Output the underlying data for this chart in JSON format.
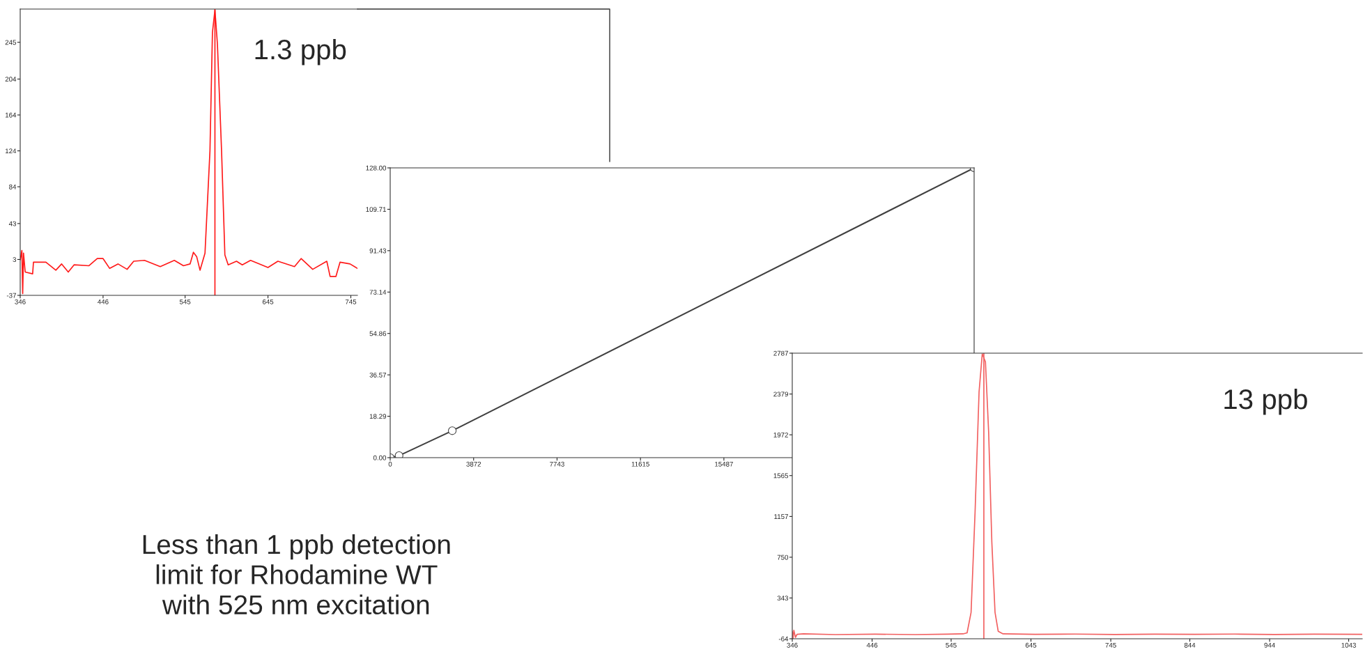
{
  "chart_data": [
    {
      "type": "line",
      "x": [
        346,
        348,
        349,
        350,
        352,
        361,
        362,
        377,
        389,
        396,
        404,
        411,
        429,
        439,
        446,
        454,
        464,
        475,
        483,
        496,
        515,
        532,
        543,
        551,
        555,
        559,
        563,
        569,
        575,
        578,
        581,
        584,
        589,
        593,
        597,
        607,
        614,
        624,
        645,
        657,
        677,
        685,
        699,
        716,
        720,
        727,
        732,
        744,
        753
      ],
      "series": [
        {
          "color": "#ff1a1a",
          "values": [
            2.5,
            13,
            -35,
            10,
            -11,
            -13,
            0,
            0,
            -9,
            -2,
            -11,
            -3,
            -4,
            4,
            4,
            -7,
            -2,
            -8,
            1,
            2,
            -5,
            2,
            -4,
            -2,
            11,
            6,
            -9,
            10,
            124,
            256,
            281,
            243,
            124,
            8,
            -3,
            1,
            -3,
            2,
            -6,
            1,
            -5,
            4,
            -8,
            1,
            -16,
            -16,
            0,
            -2,
            -7
          ]
        }
      ],
      "xlim": [
        346,
        753
      ],
      "ylim": [
        -37,
        282
      ],
      "xticks": [
        346,
        446,
        545,
        645,
        745
      ],
      "yticks": [
        -37,
        3,
        43,
        84,
        124,
        164,
        204,
        245
      ],
      "ref_lines": [
        {
          "axis": "x",
          "value": 581,
          "color": "#ff1a1a"
        }
      ],
      "annotations": [
        "1.3 ppb"
      ],
      "grid": false,
      "legend": false
    },
    {
      "type": "line",
      "x": [
        0,
        410,
        2880,
        27101
      ],
      "series": [
        {
          "color": "#404040",
          "values": [
            0,
            0.9,
            11.9,
            128
          ]
        }
      ],
      "marker": "circle",
      "xlim": [
        0,
        27101
      ],
      "ylim": [
        0,
        128
      ],
      "xticks": [
        0,
        3872,
        7743,
        11615,
        15487
      ],
      "yticks": [
        {
          "value": 0,
          "label": "0.00"
        },
        18.29,
        36.57,
        54.86,
        73.14,
        91.43,
        109.71,
        {
          "value": 128,
          "label": "128.00"
        }
      ],
      "annotations": [
        "Less than 1 ppb detection\nlimit for Rhodamine WT\nwith 525 nm excitation"
      ],
      "grid": false,
      "legend": false
    },
    {
      "type": "line",
      "x": [
        346,
        347,
        348,
        350,
        352,
        360,
        400,
        450,
        500,
        540,
        560,
        565,
        570,
        575,
        580,
        584,
        588,
        592,
        596,
        600,
        604,
        610,
        650,
        700,
        750,
        800,
        850,
        900,
        950,
        1000,
        1060
      ],
      "series": [
        {
          "color": "#f26060",
          "values": [
            10,
            -60,
            20,
            -50,
            -20,
            -15,
            -22,
            -18,
            -22,
            -18,
            -15,
            -5,
            200,
            1200,
            2400,
            2780,
            2700,
            2000,
            900,
            200,
            10,
            -15,
            -20,
            -17,
            -21,
            -18,
            -20,
            -17,
            -21,
            -18,
            -20
          ]
        }
      ],
      "xlim": [
        346,
        1060
      ],
      "ylim": [
        -64,
        2787
      ],
      "xticks": [
        346,
        446,
        545,
        645,
        745,
        844,
        944,
        1043
      ],
      "yticks": [
        -64,
        343,
        750,
        1157,
        1565,
        1972,
        2379,
        2787
      ],
      "ref_lines": [
        {
          "axis": "x",
          "value": 586,
          "color": "#f26060"
        }
      ],
      "annotations": [
        "13 ppb"
      ],
      "grid": false,
      "legend": false
    }
  ]
}
